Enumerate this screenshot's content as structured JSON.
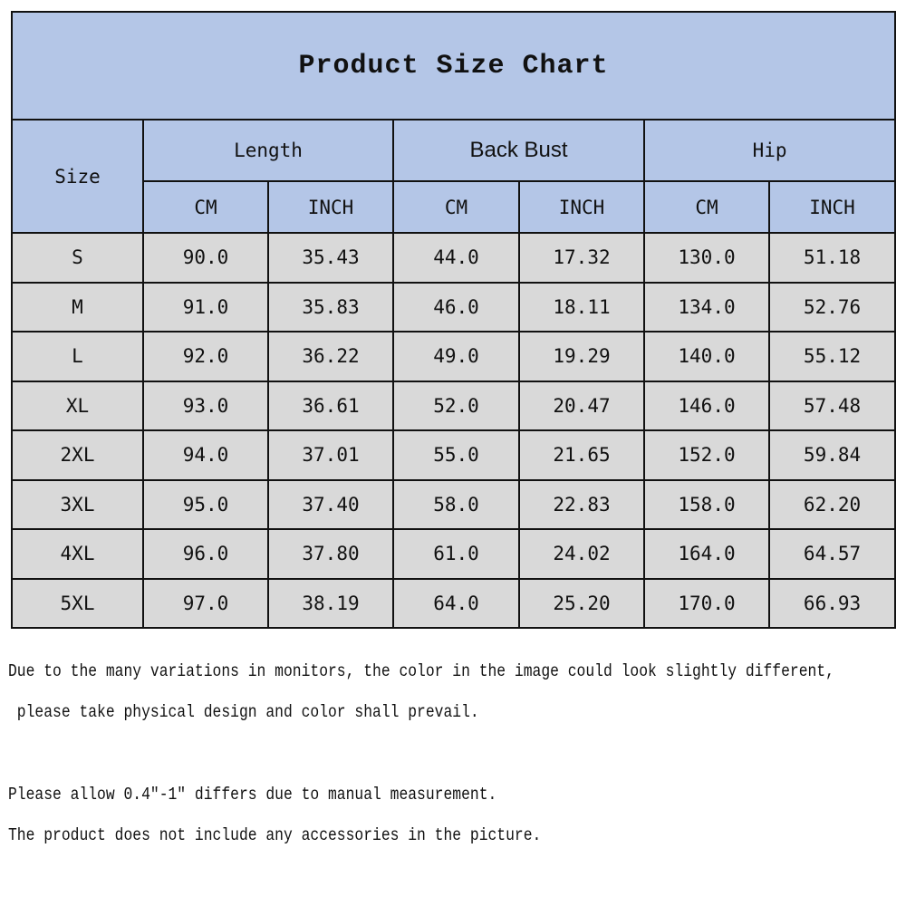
{
  "title": "Product Size Chart",
  "headers": {
    "size": "Size",
    "groups": [
      "Length",
      "Back Bust",
      "Hip"
    ],
    "units": [
      "CM",
      "INCH",
      "CM",
      "INCH",
      "CM",
      "INCH"
    ]
  },
  "rows": [
    [
      "S",
      "90.0",
      "35.43",
      "44.0",
      "17.32",
      "130.0",
      "51.18"
    ],
    [
      "M",
      "91.0",
      "35.83",
      "46.0",
      "18.11",
      "134.0",
      "52.76"
    ],
    [
      "L",
      "92.0",
      "36.22",
      "49.0",
      "19.29",
      "140.0",
      "55.12"
    ],
    [
      "XL",
      "93.0",
      "36.61",
      "52.0",
      "20.47",
      "146.0",
      "57.48"
    ],
    [
      "2XL",
      "94.0",
      "37.01",
      "55.0",
      "21.65",
      "152.0",
      "59.84"
    ],
    [
      "3XL",
      "95.0",
      "37.40",
      "58.0",
      "22.83",
      "158.0",
      "62.20"
    ],
    [
      "4XL",
      "96.0",
      "37.80",
      "61.0",
      "24.02",
      "164.0",
      "64.57"
    ],
    [
      "5XL",
      "97.0",
      "38.19",
      "64.0",
      "25.20",
      "170.0",
      "66.93"
    ]
  ],
  "notes": [
    "Due to the many variations in monitors, the color in the image could look slightly different,",
    " please take physical design and color shall prevail.",
    "Please allow 0.4\"-1\" differs due to manual measurement.",
    "The product does not include any accessories in the picture."
  ],
  "colors": {
    "header_bg": "#b4c6e7",
    "data_bg": "#d9d9d9",
    "border": "#111111"
  }
}
